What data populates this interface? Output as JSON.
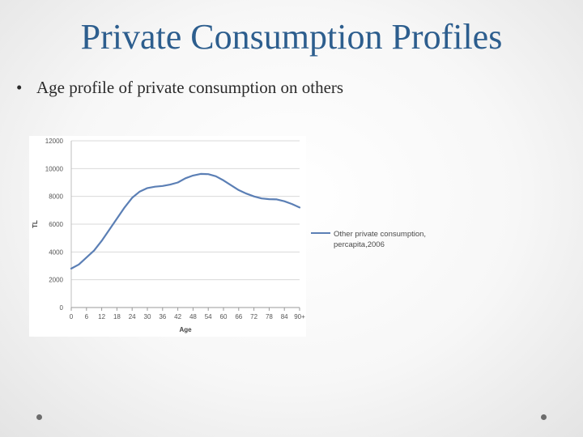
{
  "slide": {
    "title": "Private Consumption Profiles",
    "bullet_marker": "•",
    "bullet_text": "Age profile of private consumption on others"
  },
  "colors": {
    "title": "#2d5e8e",
    "series": "#5b7fb5",
    "grid": "#d9d9d9"
  },
  "chart_data": {
    "type": "line",
    "title": "",
    "xlabel": "Age",
    "ylabel": "TL",
    "ylim": [
      0,
      12000
    ],
    "yticks": [
      0,
      2000,
      4000,
      6000,
      8000,
      10000,
      12000
    ],
    "xlim": [
      0,
      90
    ],
    "xticks": [
      0,
      6,
      12,
      18,
      24,
      30,
      36,
      42,
      48,
      54,
      60,
      66,
      72,
      78,
      84,
      90
    ],
    "xtick_labels": [
      "0",
      "6",
      "12",
      "18",
      "24",
      "30",
      "36",
      "42",
      "48",
      "54",
      "60",
      "66",
      "72",
      "78",
      "84",
      "90+"
    ],
    "grid": "horizontal",
    "legend_position": "right",
    "series": [
      {
        "name": "Other private consumption, percapita,2006",
        "legend_lines": [
          "Other private consumption,",
          "percapita,2006"
        ],
        "x": [
          0,
          3,
          6,
          9,
          12,
          15,
          18,
          21,
          24,
          27,
          30,
          33,
          36,
          39,
          42,
          45,
          48,
          51,
          54,
          57,
          60,
          63,
          66,
          69,
          72,
          75,
          78,
          81,
          84,
          87,
          90
        ],
        "y": [
          2800,
          3100,
          3600,
          4100,
          4800,
          5600,
          6400,
          7200,
          7900,
          8350,
          8600,
          8700,
          8750,
          8850,
          9000,
          9300,
          9500,
          9620,
          9600,
          9450,
          9150,
          8800,
          8450,
          8200,
          8000,
          7850,
          7800,
          7780,
          7650,
          7450,
          7200
        ]
      }
    ]
  }
}
